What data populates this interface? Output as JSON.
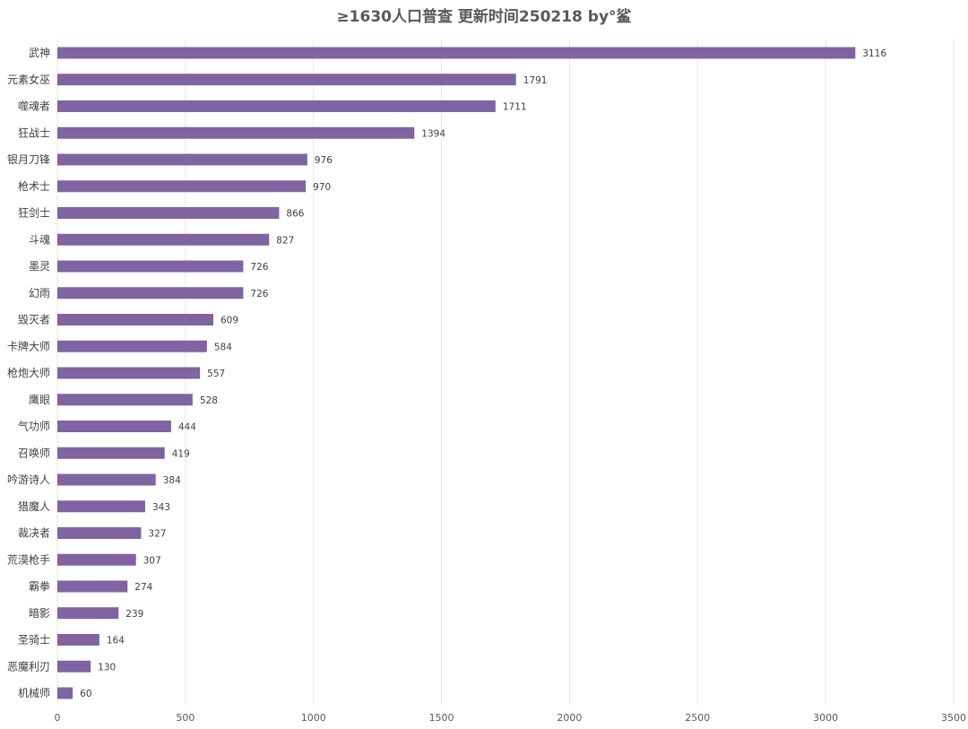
{
  "chart_data": {
    "type": "bar",
    "orientation": "horizontal",
    "title": "≥1630人口普查 更新时间250218 by°鲨",
    "categories": [
      "武神",
      "元素女巫",
      "噬魂者",
      "狂战士",
      "银月刀锋",
      "枪术士",
      "狂剑士",
      "斗魂",
      "墨灵",
      "幻雨",
      "毁灭者",
      "卡牌大师",
      "枪炮大师",
      "鹰眼",
      "气功师",
      "召唤师",
      "吟游诗人",
      "猎魔人",
      "裁决者",
      "荒漠枪手",
      "霸拳",
      "暗影",
      "圣骑士",
      "恶魔利刃",
      "机械师"
    ],
    "values": [
      3116,
      1791,
      1711,
      1394,
      976,
      970,
      866,
      827,
      726,
      726,
      609,
      584,
      557,
      528,
      444,
      419,
      384,
      343,
      327,
      307,
      274,
      239,
      164,
      130,
      60
    ],
    "xlim": [
      0,
      3500
    ],
    "x_ticks": [
      0,
      500,
      1000,
      1500,
      2000,
      2500,
      3000,
      3500
    ],
    "xlabel": "",
    "ylabel": "",
    "grid": "vertical",
    "data_labels": true,
    "bar_color": "#8064a2",
    "legend": "none"
  }
}
